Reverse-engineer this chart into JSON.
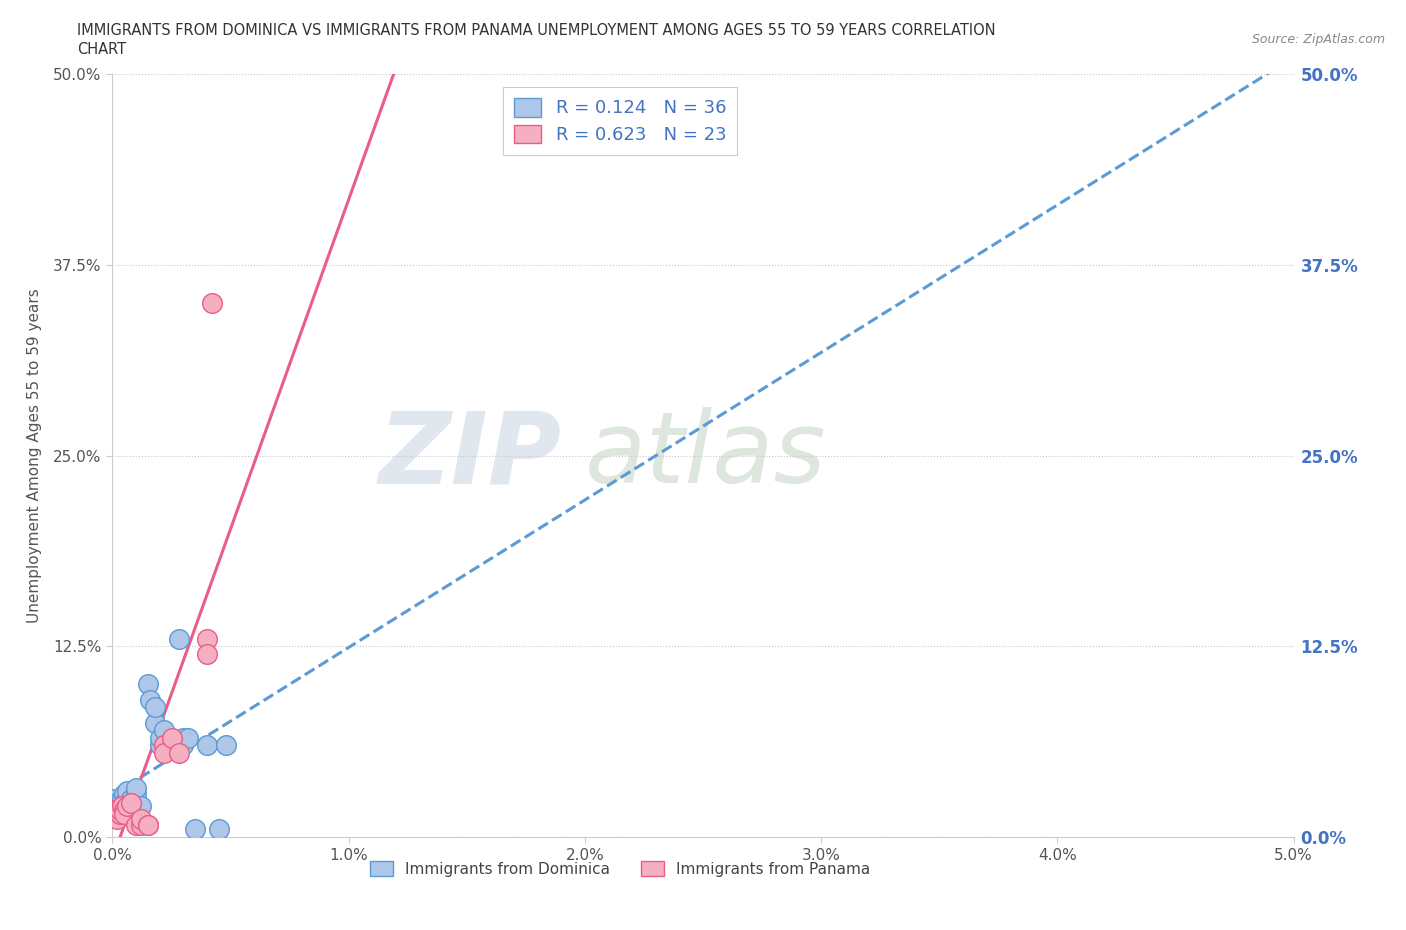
{
  "title_line1": "IMMIGRANTS FROM DOMINICA VS IMMIGRANTS FROM PANAMA UNEMPLOYMENT AMONG AGES 55 TO 59 YEARS CORRELATION",
  "title_line2": "CHART",
  "source_text": "Source: ZipAtlas.com",
  "ylabel": "Unemployment Among Ages 55 to 59 years",
  "xlim": [
    0.0,
    0.05
  ],
  "ylim": [
    0.0,
    0.5
  ],
  "xtick_labels": [
    "0.0%",
    "1.0%",
    "2.0%",
    "3.0%",
    "4.0%",
    "5.0%"
  ],
  "xtick_vals": [
    0.0,
    0.01,
    0.02,
    0.03,
    0.04,
    0.05
  ],
  "ytick_labels": [
    "0.0%",
    "12.5%",
    "25.0%",
    "37.5%",
    "50.0%"
  ],
  "ytick_vals": [
    0.0,
    0.125,
    0.25,
    0.375,
    0.5
  ],
  "dominica_color": "#aec6e8",
  "panama_color": "#f4afc0",
  "dominica_edge_color": "#5b9bd5",
  "panama_edge_color": "#e85d8a",
  "dominica_line_color": "#5b9bd5",
  "panama_line_color": "#e85d8a",
  "label_color": "#4472c4",
  "R_dominica": 0.124,
  "N_dominica": 36,
  "R_panama": 0.623,
  "N_panama": 23,
  "legend_label_dominica": "Immigrants from Dominica",
  "legend_label_panama": "Immigrants from Panama",
  "dominica_scatter": [
    [
      0.0,
      0.02
    ],
    [
      0.0,
      0.018
    ],
    [
      0.0,
      0.022
    ],
    [
      0.0,
      0.015
    ],
    [
      0.0,
      0.025
    ],
    [
      0.0002,
      0.02
    ],
    [
      0.0002,
      0.022
    ],
    [
      0.0002,
      0.018
    ],
    [
      0.0004,
      0.025
    ],
    [
      0.0005,
      0.028
    ],
    [
      0.0005,
      0.022
    ],
    [
      0.0006,
      0.02
    ],
    [
      0.0006,
      0.018
    ],
    [
      0.0006,
      0.025
    ],
    [
      0.0006,
      0.03
    ],
    [
      0.0008,
      0.022
    ],
    [
      0.0008,
      0.025
    ],
    [
      0.001,
      0.028
    ],
    [
      0.001,
      0.032
    ],
    [
      0.0012,
      0.02
    ],
    [
      0.0015,
      0.1
    ],
    [
      0.0016,
      0.09
    ],
    [
      0.0018,
      0.075
    ],
    [
      0.0018,
      0.085
    ],
    [
      0.002,
      0.06
    ],
    [
      0.002,
      0.065
    ],
    [
      0.0022,
      0.07
    ],
    [
      0.0025,
      0.06
    ],
    [
      0.0028,
      0.13
    ],
    [
      0.003,
      0.06
    ],
    [
      0.003,
      0.065
    ],
    [
      0.0032,
      0.065
    ],
    [
      0.0035,
      0.005
    ],
    [
      0.004,
      0.06
    ],
    [
      0.0045,
      0.005
    ],
    [
      0.0048,
      0.06
    ]
  ],
  "panama_scatter": [
    [
      0.0,
      0.018
    ],
    [
      0.0001,
      0.015
    ],
    [
      0.0002,
      0.012
    ],
    [
      0.0002,
      0.018
    ],
    [
      0.0003,
      0.015
    ],
    [
      0.0003,
      0.018
    ],
    [
      0.0004,
      0.02
    ],
    [
      0.0005,
      0.018
    ],
    [
      0.0005,
      0.015
    ],
    [
      0.0006,
      0.02
    ],
    [
      0.0008,
      0.022
    ],
    [
      0.001,
      0.008
    ],
    [
      0.0012,
      0.008
    ],
    [
      0.0012,
      0.012
    ],
    [
      0.0015,
      0.008
    ],
    [
      0.0015,
      0.008
    ],
    [
      0.0022,
      0.06
    ],
    [
      0.0022,
      0.055
    ],
    [
      0.0025,
      0.065
    ],
    [
      0.0028,
      0.055
    ],
    [
      0.004,
      0.13
    ],
    [
      0.004,
      0.12
    ],
    [
      0.0042,
      0.35
    ]
  ]
}
